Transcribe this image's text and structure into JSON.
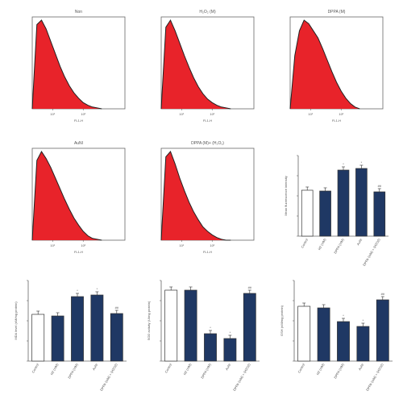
{
  "chart_data": [
    {
      "type": "area",
      "title": "Non",
      "xlabel": "FL1-H",
      "x_tick_labels": [
        "10¹",
        "10²"
      ],
      "x": [
        0,
        0.05,
        0.1,
        0.15,
        0.2,
        0.25,
        0.3,
        0.35,
        0.4,
        0.45,
        0.5,
        0.55,
        0.6,
        0.65,
        0.7,
        0.75
      ],
      "series": [
        {
          "values": [
            0,
            95,
            100,
            90,
            76,
            62,
            48,
            36,
            26,
            18,
            12,
            7,
            4,
            2,
            1,
            0
          ]
        }
      ]
    },
    {
      "type": "area",
      "title": "H₂O₂ (M)",
      "xlabel": "FL1-H",
      "x_tick_labels": [
        "10¹",
        "10²"
      ],
      "x": [
        0,
        0.05,
        0.1,
        0.15,
        0.2,
        0.25,
        0.3,
        0.35,
        0.4,
        0.45,
        0.5,
        0.55,
        0.6,
        0.65,
        0.7,
        0.75
      ],
      "series": [
        {
          "values": [
            0,
            92,
            100,
            88,
            74,
            60,
            47,
            35,
            25,
            17,
            11,
            7,
            4,
            2,
            1,
            0
          ]
        }
      ]
    },
    {
      "type": "area",
      "title": "DPPA (M)",
      "xlabel": "FL1-H",
      "x_tick_labels": [
        "10¹",
        "10²"
      ],
      "x": [
        0,
        0.05,
        0.1,
        0.15,
        0.2,
        0.25,
        0.3,
        0.35,
        0.4,
        0.45,
        0.5,
        0.55,
        0.6,
        0.65,
        0.7,
        0.75
      ],
      "series": [
        {
          "values": [
            0,
            60,
            88,
            100,
            96,
            88,
            80,
            68,
            55,
            42,
            30,
            20,
            12,
            6,
            2,
            0
          ]
        }
      ]
    },
    {
      "type": "area",
      "title": "AuNI",
      "xlabel": "FL1-H",
      "x_tick_labels": [
        "10¹",
        "10²"
      ],
      "x": [
        0,
        0.05,
        0.1,
        0.15,
        0.2,
        0.25,
        0.3,
        0.35,
        0.4,
        0.45,
        0.5,
        0.55,
        0.6,
        0.65,
        0.7,
        0.75
      ],
      "series": [
        {
          "values": [
            0,
            90,
            100,
            92,
            82,
            70,
            58,
            46,
            35,
            25,
            17,
            10,
            5,
            2,
            1,
            0
          ]
        }
      ]
    },
    {
      "type": "area",
      "title": "DPPA (M)+ (H₂O₂)",
      "xlabel": "FL1-H",
      "x_tick_labels": [
        "10¹",
        "10²"
      ],
      "x": [
        0,
        0.05,
        0.1,
        0.15,
        0.2,
        0.25,
        0.3,
        0.35,
        0.4,
        0.45,
        0.5,
        0.55,
        0.6,
        0.65,
        0.7,
        0.75
      ],
      "series": [
        {
          "values": [
            0,
            94,
            100,
            86,
            70,
            56,
            43,
            32,
            23,
            15,
            10,
            6,
            3,
            1,
            0,
            0
          ]
        }
      ]
    },
    {
      "type": "bar",
      "ylabel": "Mean fluorescence intensity",
      "categories": [
        "Control",
        "H2 (mM)",
        "DPPA (mM)",
        "AuNI",
        "DPPA (mM) + (H2O2)"
      ],
      "values": [
        57,
        56,
        82,
        84,
        55
      ],
      "ylim": [
        0,
        100
      ],
      "significance": [
        "",
        "",
        "*",
        "*",
        "##"
      ]
    },
    {
      "type": "bar",
      "ylabel": "MDA level (nM/mg protein)",
      "categories": [
        "Control",
        "H2 (mM)",
        "DPPA (mM)",
        "AuNI",
        "DPPA (mM) + (H2O2)"
      ],
      "values": [
        58,
        56,
        80,
        82,
        59
      ],
      "ylim": [
        0,
        100
      ],
      "significance": [
        "",
        "",
        "*",
        "*",
        "##"
      ]
    },
    {
      "type": "bar",
      "ylabel": "SOD activity (U/mg protein)",
      "categories": [
        "Control",
        "H2 (mM)",
        "DPPA (mM)",
        "AuNI",
        "DPPA (mM) + (H2O2)"
      ],
      "values": [
        88,
        88,
        34,
        28,
        84
      ],
      "ylim": [
        0,
        100
      ],
      "significance": [
        "",
        "",
        "*",
        "*",
        "##"
      ]
    },
    {
      "type": "bar",
      "ylabel": "GSH (nM/mg protein)",
      "categories": [
        "Control",
        "H2 (mM)",
        "DPPA (mM)",
        "AuNI",
        "DPPA (mM) + (H2O2)"
      ],
      "values": [
        68,
        66,
        49,
        43,
        76
      ],
      "ylim": [
        0,
        100
      ],
      "significance": [
        "",
        "",
        "*",
        "*",
        "##"
      ]
    }
  ],
  "colors": {
    "fill": "#e8232a",
    "outline": "#222222",
    "bar_dark": "#1f3864",
    "bar_light": "#ffffff",
    "axis": "#666666"
  }
}
